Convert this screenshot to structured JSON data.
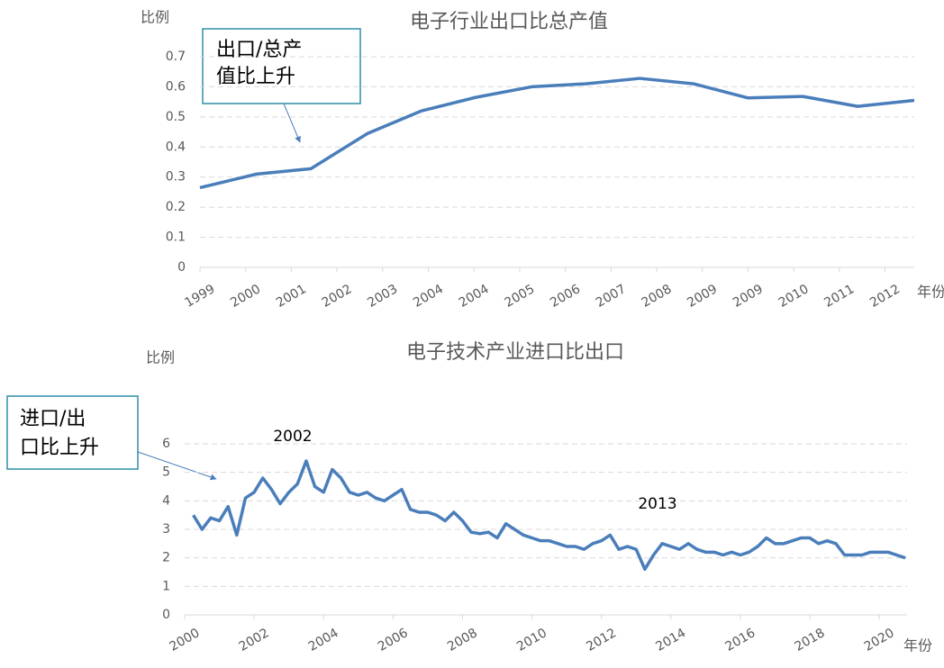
{
  "chart_data": [
    {
      "type": "line",
      "title": "电子行业出口比总产值",
      "y_label": "比例",
      "x_label": "年份",
      "annotation_box": [
        "出口/总产",
        "值比上升"
      ],
      "x": [
        0,
        1.24,
        2.43,
        3.67,
        4.85,
        6.04,
        7.26,
        8.44,
        9.63,
        10.81,
        12.0,
        13.2,
        14.4,
        15.64
      ],
      "series": [
        {
          "color": "#4a7ebb",
          "values": [
            0.265,
            0.31,
            0.328,
            0.445,
            0.52,
            0.565,
            0.6,
            0.61,
            0.628,
            0.61,
            0.563,
            0.568,
            0.535,
            0.555
          ]
        }
      ],
      "xlim": [
        0,
        15.64
      ],
      "ylim": [
        0,
        0.7
      ],
      "xticks": [
        {
          "value": 0,
          "label": "1999"
        },
        {
          "value": 1,
          "label": "2000"
        },
        {
          "value": 2,
          "label": "2001"
        },
        {
          "value": 3,
          "label": "2002"
        },
        {
          "value": 4,
          "label": "2003"
        },
        {
          "value": 5,
          "label": "2004"
        },
        {
          "value": 6,
          "label": "2004"
        },
        {
          "value": 7,
          "label": "2005"
        },
        {
          "value": 8,
          "label": "2006"
        },
        {
          "value": 9,
          "label": "2007"
        },
        {
          "value": 10,
          "label": "2008"
        },
        {
          "value": 11,
          "label": "2009"
        },
        {
          "value": 12,
          "label": "2009"
        },
        {
          "value": 13,
          "label": "2010"
        },
        {
          "value": 14,
          "label": "2011"
        },
        {
          "value": 15,
          "label": "2012"
        }
      ],
      "yticks": [
        0,
        0.1,
        0.2,
        0.3,
        0.4,
        0.5,
        0.6,
        0.7
      ],
      "grid": true
    },
    {
      "type": "line",
      "title": "电子技术产业进口比出口",
      "y_label": "比例",
      "x_label": "年份",
      "annotation_box": [
        "进口/出",
        "口比上升"
      ],
      "annotations": [
        "2002",
        "2013"
      ],
      "x": [
        2000.25,
        2000.5,
        2000.75,
        2001,
        2001.25,
        2001.5,
        2001.75,
        2002,
        2002.25,
        2002.5,
        2002.75,
        2003,
        2003.25,
        2003.5,
        2003.75,
        2004,
        2004.25,
        2004.5,
        2004.75,
        2005,
        2005.25,
        2005.5,
        2005.75,
        2006,
        2006.25,
        2006.5,
        2006.75,
        2007,
        2007.25,
        2007.5,
        2007.75,
        2008,
        2008.25,
        2008.5,
        2008.75,
        2009,
        2009.25,
        2009.5,
        2009.75,
        2010,
        2010.25,
        2010.5,
        2010.75,
        2011,
        2011.25,
        2011.5,
        2011.75,
        2012,
        2012.25,
        2012.5,
        2012.75,
        2013,
        2013.25,
        2013.5,
        2013.75,
        2014,
        2014.25,
        2014.5,
        2014.75,
        2015,
        2015.25,
        2015.5,
        2015.75,
        2016,
        2016.25,
        2016.5,
        2016.75,
        2017,
        2017.25,
        2017.5,
        2017.75,
        2018,
        2018.25,
        2018.5,
        2018.75,
        2019,
        2019.25,
        2019.5,
        2019.75,
        2020,
        2020.25,
        2020.5,
        2020.75
      ],
      "series": [
        {
          "color": "#4a7ebb",
          "values": [
            3.5,
            3.0,
            3.4,
            3.3,
            3.8,
            2.8,
            4.1,
            4.3,
            4.8,
            4.4,
            3.9,
            4.3,
            4.6,
            5.4,
            4.5,
            4.3,
            5.1,
            4.8,
            4.3,
            4.2,
            4.3,
            4.1,
            4.0,
            4.2,
            4.4,
            3.7,
            3.6,
            3.6,
            3.5,
            3.3,
            3.6,
            3.3,
            2.9,
            2.85,
            2.9,
            2.7,
            3.2,
            3.0,
            2.8,
            2.7,
            2.6,
            2.6,
            2.5,
            2.4,
            2.4,
            2.3,
            2.5,
            2.6,
            2.8,
            2.3,
            2.4,
            2.3,
            1.6,
            2.1,
            2.5,
            2.4,
            2.3,
            2.5,
            2.3,
            2.2,
            2.2,
            2.1,
            2.2,
            2.1,
            2.2,
            2.4,
            2.7,
            2.5,
            2.5,
            2.6,
            2.7,
            2.7,
            2.5,
            2.6,
            2.5,
            2.1,
            2.1,
            2.1,
            2.2,
            2.2,
            2.2,
            2.1,
            2.0
          ]
        }
      ],
      "xlim": [
        2000,
        2020.8
      ],
      "ylim": [
        0,
        6
      ],
      "xticks": [
        2000,
        2002,
        2004,
        2006,
        2008,
        2010,
        2012,
        2014,
        2016,
        2018,
        2020
      ],
      "yticks": [
        0,
        1,
        2,
        3,
        4,
        5,
        6
      ],
      "grid": true
    }
  ]
}
